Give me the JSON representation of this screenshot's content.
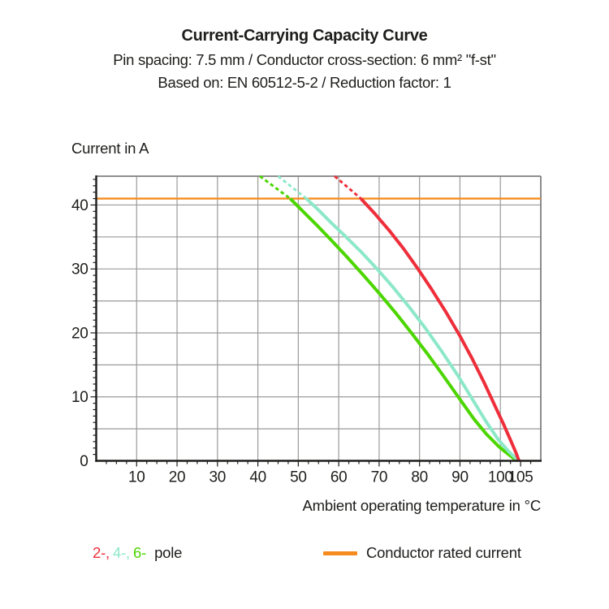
{
  "header": {
    "title": "Current-Carrying Capacity Curve",
    "subtitle_line1": "Pin spacing: 7.5 mm / Conductor cross-section: 6 mm² \"f-st\"",
    "subtitle_line2": "Based on: EN 60512-5-2 / Reduction factor: 1"
  },
  "chart_data": {
    "type": "line",
    "title": "Current-Carrying Capacity Curve",
    "xlabel": "Ambient operating temperature in °C",
    "ylabel": "Current in A",
    "xlim": [
      0,
      110
    ],
    "ylim": [
      0,
      44.5
    ],
    "x_tick_labels": [
      10,
      20,
      30,
      40,
      50,
      60,
      70,
      80,
      90,
      100,
      105
    ],
    "y_tick_labels": [
      0,
      10,
      20,
      30,
      40
    ],
    "x_grid_step": 10,
    "y_grid_step": 5,
    "x_minor_tick_step": 2.5,
    "y_minor_tick_step": 1,
    "grid": true,
    "grid_color": "#9a9a9a",
    "frame_color": "#7f7f7f",
    "axis_color": "#1d1d1b",
    "rated_current": {
      "value": 41,
      "color": "#f68b1f",
      "label": "Conductor rated current"
    },
    "series": [
      {
        "name": "2-pole",
        "color": "#ee2e3a",
        "dashed": [
          [
            59,
            44.5
          ],
          [
            65.5,
            41
          ]
        ],
        "solid": [
          [
            65.5,
            41
          ],
          [
            69,
            38.6
          ],
          [
            72.5,
            36
          ],
          [
            76,
            33.2
          ],
          [
            79.5,
            30.1
          ],
          [
            83,
            26.8
          ],
          [
            86.5,
            23.3
          ],
          [
            90,
            19.5
          ],
          [
            93,
            16
          ],
          [
            96,
            12.2
          ],
          [
            98.5,
            8.8
          ],
          [
            100.8,
            5.7
          ],
          [
            102.6,
            3.1
          ],
          [
            103.9,
            1.2
          ],
          [
            104.6,
            0
          ]
        ]
      },
      {
        "name": "4-pole",
        "color": "#8ce8c8",
        "dashed": [
          [
            45,
            44.5
          ],
          [
            52,
            41
          ]
        ],
        "solid": [
          [
            52,
            41
          ],
          [
            55,
            39.2
          ],
          [
            58,
            37.3
          ],
          [
            61.5,
            35.2
          ],
          [
            65.5,
            32.7
          ],
          [
            69.5,
            30
          ],
          [
            73.5,
            27.1
          ],
          [
            77.5,
            24
          ],
          [
            81.5,
            20.7
          ],
          [
            85.5,
            17.1
          ],
          [
            89.5,
            13.3
          ],
          [
            93,
            9.7
          ],
          [
            96.5,
            6.1
          ],
          [
            99.5,
            3.3
          ],
          [
            102,
            1.5
          ],
          [
            103.8,
            0.4
          ],
          [
            104.45,
            0
          ]
        ]
      },
      {
        "name": "6-pole",
        "color": "#4cd600",
        "dashed": [
          [
            40.5,
            44.5
          ],
          [
            48,
            41
          ]
        ],
        "solid": [
          [
            48,
            41
          ],
          [
            51,
            39.1
          ],
          [
            54.5,
            36.9
          ],
          [
            58,
            34.6
          ],
          [
            62,
            31.9
          ],
          [
            66,
            29.1
          ],
          [
            70,
            26.2
          ],
          [
            74,
            23.2
          ],
          [
            78,
            20
          ],
          [
            82,
            16.7
          ],
          [
            86,
            13.2
          ],
          [
            90,
            9.6
          ],
          [
            93.5,
            6.5
          ],
          [
            96.5,
            4.2
          ],
          [
            99.5,
            2.3
          ],
          [
            101.8,
            1.1
          ],
          [
            103.5,
            0.3
          ],
          [
            104.3,
            0
          ]
        ]
      }
    ],
    "legend_position": "bottom"
  },
  "legend": {
    "pole_parts": [
      {
        "text": "2-,",
        "color": "#ee2e3a"
      },
      {
        "text": "4-,",
        "color": "#8ce8c8"
      },
      {
        "text": "6-",
        "color": "#4cd600"
      }
    ],
    "pole_suffix": "pole",
    "rated_label": "Conductor rated current"
  }
}
